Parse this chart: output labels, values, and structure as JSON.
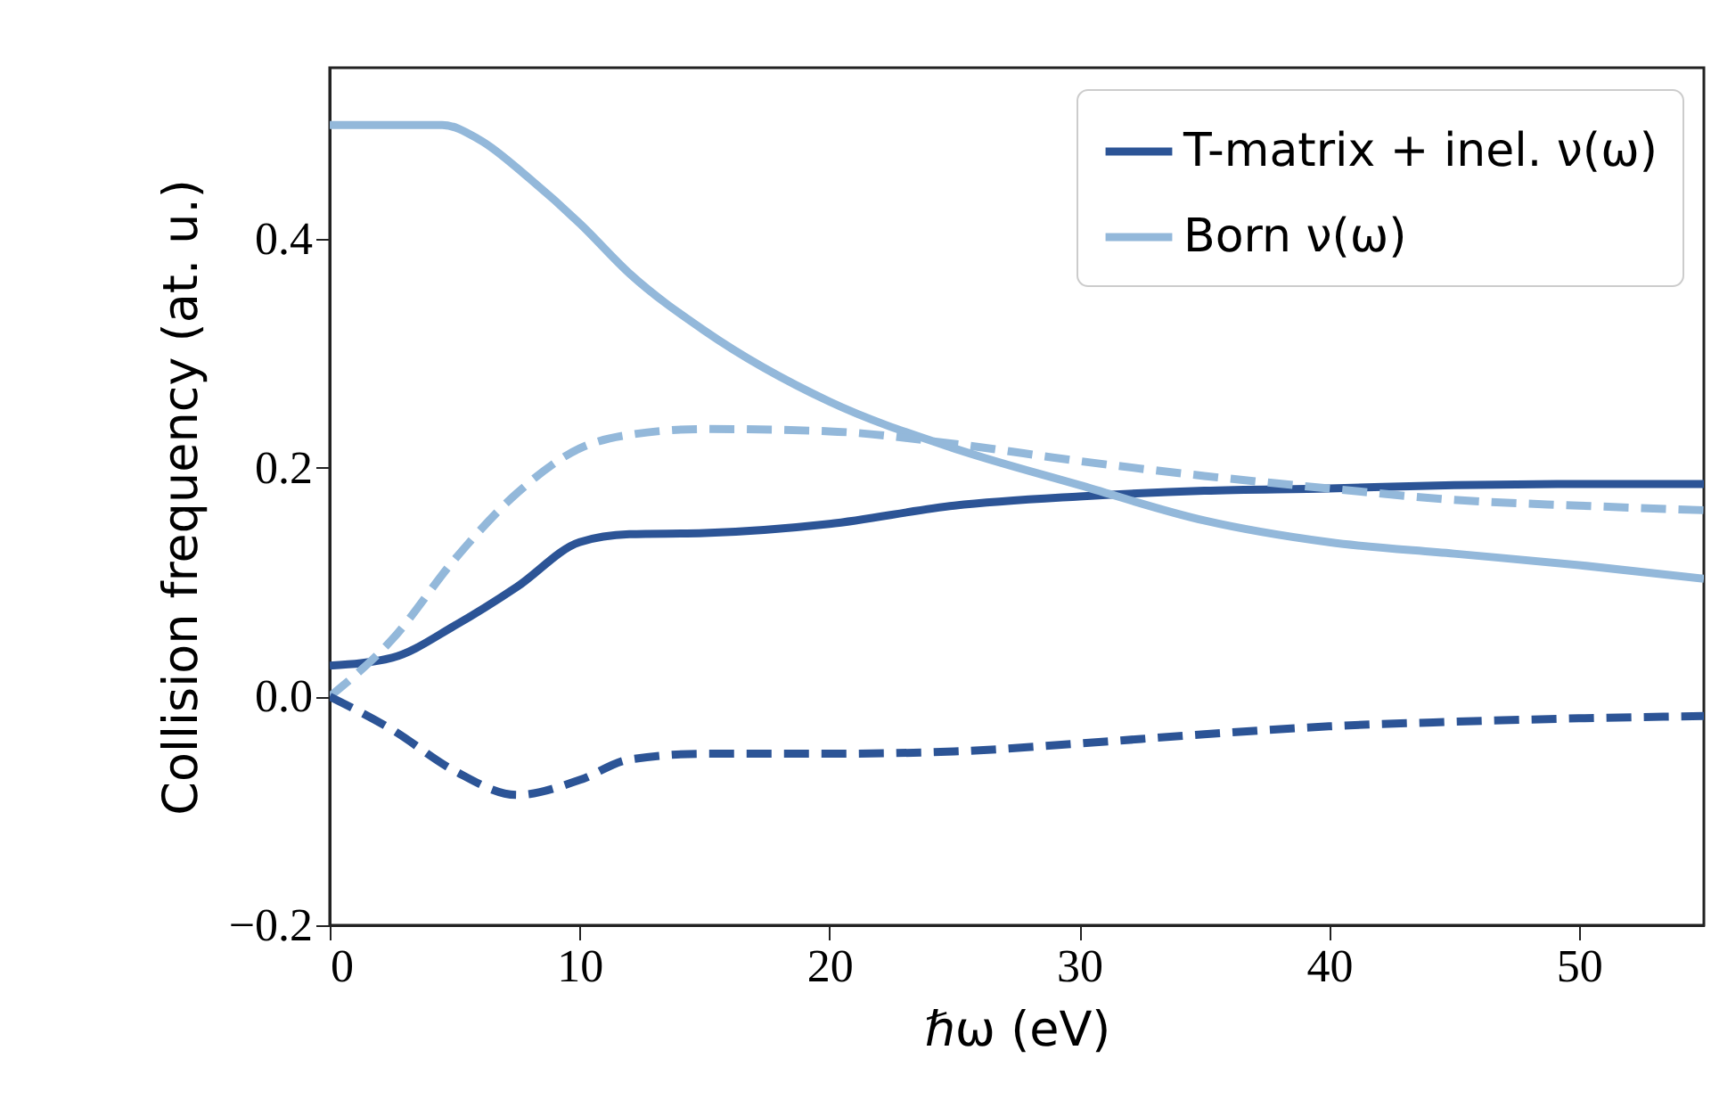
{
  "chart_data": {
    "type": "line",
    "xlabel": "ℏω (eV)",
    "ylabel": "Collision frequency (at. u.)",
    "xlim": [
      0,
      55
    ],
    "xticks": [
      0,
      10,
      20,
      30,
      40,
      50
    ],
    "ylim": [
      -0.2,
      0.55
    ],
    "yticks": [
      {
        "value": -0.2,
        "label": "−0.2"
      },
      {
        "value": 0,
        "label": "0.0"
      },
      0.2,
      0.4
    ],
    "x": [
      0,
      2.5,
      5,
      7.5,
      10,
      12,
      15,
      20,
      25,
      30,
      35,
      40,
      45,
      50,
      55
    ],
    "legend": "top right",
    "grid": false,
    "series": [
      {
        "name": "T-matrix + inel. ν(ω)",
        "color": "#2c5496",
        "line_style": "solid",
        "values": [
          0.027,
          0.034,
          0.062,
          0.096,
          0.135,
          0.142,
          0.143,
          0.151,
          0.167,
          0.175,
          0.18,
          0.182,
          0.185,
          0.186,
          0.186
        ]
      },
      {
        "name": "Born ν(ω)",
        "color": "#93b8da",
        "line_style": "solid",
        "x": [
          0,
          2.5,
          4.5,
          6,
          8,
          10,
          12,
          15,
          20,
          25,
          30,
          35,
          40,
          45,
          50,
          55
        ],
        "values": [
          0.5,
          0.5,
          0.5,
          0.487,
          0.453,
          0.414,
          0.37,
          0.32,
          0.258,
          0.217,
          0.185,
          0.154,
          0.135,
          0.125,
          0.115,
          0.103
        ]
      },
      {
        "color": "#93b8da",
        "line_style": "dashed",
        "values": [
          0,
          0.05,
          0.12,
          0.178,
          0.217,
          0.229,
          0.234,
          0.232,
          0.221,
          0.206,
          0.193,
          0.182,
          0.172,
          0.167,
          0.163
        ]
      },
      {
        "color": "#2c5496",
        "line_style": "dashed",
        "values": [
          0,
          -0.029,
          -0.065,
          -0.086,
          -0.073,
          -0.055,
          -0.05,
          -0.05,
          -0.048,
          -0.041,
          -0.033,
          -0.026,
          -0.022,
          -0.019,
          -0.017
        ]
      }
    ]
  }
}
